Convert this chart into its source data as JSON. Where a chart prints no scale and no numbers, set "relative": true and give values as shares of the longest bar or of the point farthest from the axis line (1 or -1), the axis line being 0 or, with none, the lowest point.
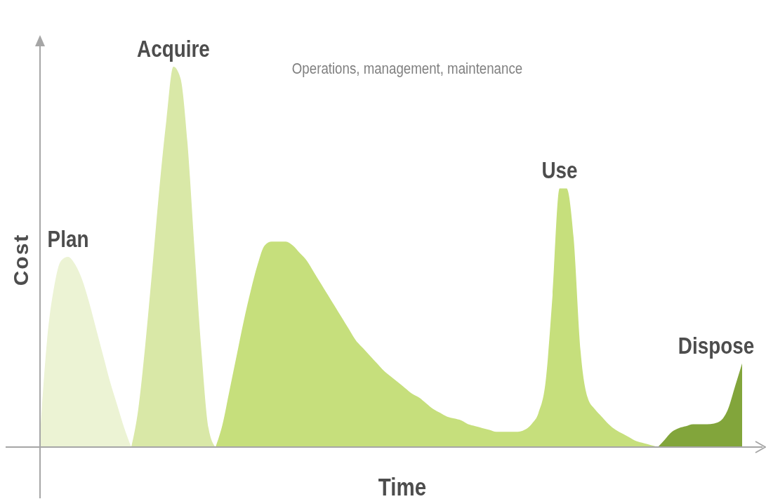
{
  "chart_data": {
    "type": "area",
    "relative": true,
    "xlabel": "Time",
    "ylabel": "Cost",
    "annotations": [
      "Operations, management, maintenance"
    ],
    "categories": [
      null,
      null,
      null,
      null,
      null,
      null,
      null,
      null,
      null,
      null,
      null,
      null,
      null,
      null,
      null,
      null,
      null,
      null,
      null,
      null,
      null,
      null,
      null,
      null,
      null,
      null,
      null,
      null,
      null,
      null,
      null,
      null,
      null,
      null,
      null,
      null,
      null,
      null,
      null,
      null,
      null,
      null,
      null,
      null,
      null,
      null,
      null,
      null,
      null,
      null,
      null,
      null,
      null,
      null,
      null,
      null,
      null,
      null,
      null,
      null,
      null,
      null,
      null,
      null,
      null,
      null,
      null,
      null,
      null,
      null,
      null,
      null,
      null,
      null,
      null,
      null,
      null,
      null,
      null,
      null,
      null,
      null,
      null,
      null,
      null,
      null,
      null,
      null,
      null,
      null,
      null,
      null,
      null,
      null,
      null,
      null,
      null,
      null,
      null,
      null,
      null
    ],
    "series": [
      {
        "name": "Plan",
        "color": "#ecf3d4",
        "values": [
          0.03,
          0.28,
          0.42,
          0.49,
          0.5,
          0.48,
          0.44,
          0.38,
          0.31,
          0.24,
          0.17,
          0.11,
          0.05,
          0,
          null,
          null,
          null,
          null,
          null,
          null,
          null,
          null,
          null,
          null,
          null,
          null,
          null,
          null,
          null,
          null,
          null,
          null,
          null,
          null,
          null,
          null,
          null,
          null,
          null,
          null,
          null,
          null,
          null,
          null,
          null,
          null,
          null,
          null,
          null,
          null,
          null,
          null,
          null,
          null,
          null,
          null,
          null,
          null,
          null,
          null,
          null,
          null,
          null,
          null,
          null,
          null,
          null,
          null,
          null,
          null,
          null,
          null,
          null,
          null,
          null,
          null,
          null,
          null,
          null,
          null,
          null,
          null,
          null,
          null,
          null,
          null,
          null,
          null,
          null,
          null,
          null,
          null,
          null,
          null,
          null,
          null,
          null,
          null,
          null,
          null,
          null
        ]
      },
      {
        "name": "Acquire",
        "color": "#d9e8a7",
        "values": [
          null,
          null,
          null,
          null,
          null,
          null,
          null,
          null,
          null,
          null,
          null,
          null,
          null,
          0,
          0.1,
          0.27,
          0.47,
          0.68,
          0.86,
          1,
          0.97,
          0.8,
          0.52,
          0.25,
          0.05,
          0,
          null,
          null,
          null,
          null,
          null,
          null,
          null,
          null,
          null,
          null,
          null,
          null,
          null,
          null,
          null,
          null,
          null,
          null,
          null,
          null,
          null,
          null,
          null,
          null,
          null,
          null,
          null,
          null,
          null,
          null,
          null,
          null,
          null,
          null,
          null,
          null,
          null,
          null,
          null,
          null,
          null,
          null,
          null,
          null,
          null,
          null,
          null,
          null,
          null,
          null,
          null,
          null,
          null,
          null,
          null,
          null,
          null,
          null,
          null,
          null,
          null,
          null,
          null,
          null,
          null,
          null,
          null,
          null,
          null,
          null,
          null,
          null,
          null,
          null,
          null
        ]
      },
      {
        "name": "Use",
        "color": "#c6df7c",
        "values": [
          null,
          null,
          null,
          null,
          null,
          null,
          null,
          null,
          null,
          null,
          null,
          null,
          null,
          null,
          null,
          null,
          null,
          null,
          null,
          null,
          null,
          null,
          null,
          null,
          null,
          0,
          0.06,
          0.15,
          0.24,
          0.33,
          0.41,
          0.48,
          0.53,
          0.54,
          0.54,
          0.54,
          0.53,
          0.51,
          0.49,
          0.46,
          0.43,
          0.4,
          0.37,
          0.34,
          0.31,
          0.28,
          0.26,
          0.24,
          0.22,
          0.2,
          0.185,
          0.17,
          0.155,
          0.14,
          0.13,
          0.115,
          0.1,
          0.09,
          0.08,
          0.075,
          0.07,
          0.06,
          0.055,
          0.05,
          0.045,
          0.04,
          0.04,
          0.04,
          0.04,
          0.045,
          0.06,
          0.09,
          0.17,
          0.4,
          0.68,
          0.68,
          0.55,
          0.25,
          0.13,
          0.1,
          0.08,
          0.06,
          0.045,
          0.035,
          0.025,
          0.015,
          0.01,
          0.005,
          0,
          null,
          null,
          null,
          null,
          null,
          null,
          null,
          null,
          null,
          null,
          null,
          null
        ]
      },
      {
        "name": "Dispose",
        "color": "#82a53b",
        "values": [
          null,
          null,
          null,
          null,
          null,
          null,
          null,
          null,
          null,
          null,
          null,
          null,
          null,
          null,
          null,
          null,
          null,
          null,
          null,
          null,
          null,
          null,
          null,
          null,
          null,
          null,
          null,
          null,
          null,
          null,
          null,
          null,
          null,
          null,
          null,
          null,
          null,
          null,
          null,
          null,
          null,
          null,
          null,
          null,
          null,
          null,
          null,
          null,
          null,
          null,
          null,
          null,
          null,
          null,
          null,
          null,
          null,
          null,
          null,
          null,
          null,
          null,
          null,
          null,
          null,
          null,
          null,
          null,
          null,
          null,
          null,
          null,
          null,
          null,
          null,
          null,
          null,
          null,
          null,
          null,
          null,
          null,
          null,
          null,
          null,
          null,
          null,
          null,
          0,
          0.02,
          0.04,
          0.05,
          0.055,
          0.06,
          0.06,
          0.06,
          0.062,
          0.07,
          0.1,
          0.16,
          0.22
        ]
      }
    ]
  }
}
